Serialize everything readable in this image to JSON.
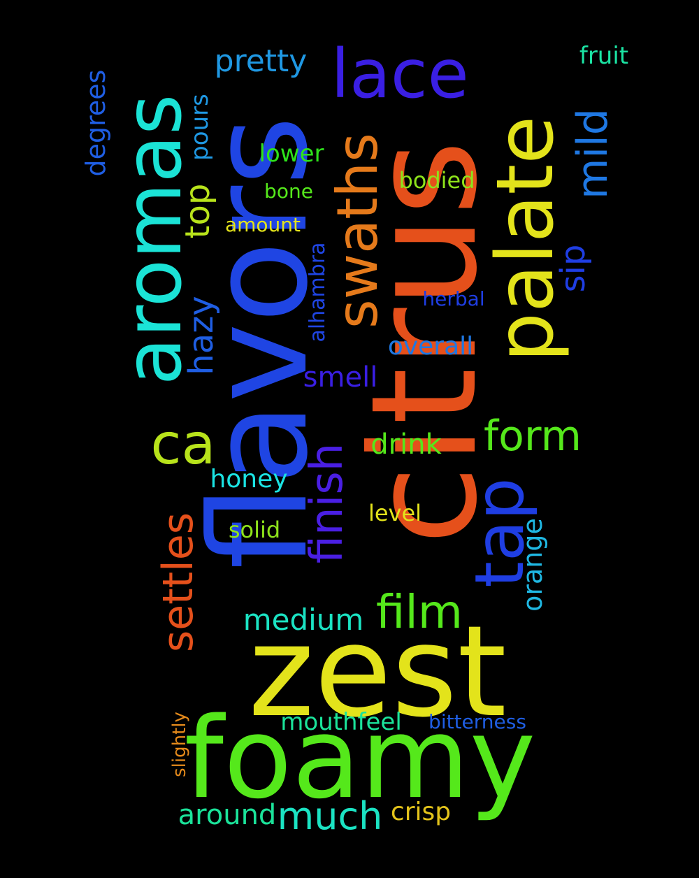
{
  "words": [
    {
      "text": "citrus",
      "color": "#e5501b"
    },
    {
      "text": "flavors",
      "color": "#1f45e3"
    },
    {
      "text": "zest",
      "color": "#e3e31b"
    },
    {
      "text": "foamy",
      "color": "#55e81b"
    },
    {
      "text": "aromas",
      "color": "#1be3d6"
    },
    {
      "text": "palate",
      "color": "#e3e31b"
    },
    {
      "text": "lace",
      "color": "#3a1fe3"
    },
    {
      "text": "swaths",
      "color": "#e57a1b"
    },
    {
      "text": "tap",
      "color": "#1f3ee3"
    },
    {
      "text": "ca",
      "color": "#b8e31b"
    },
    {
      "text": "finish",
      "color": "#4a1fe3"
    },
    {
      "text": "film",
      "color": "#55e81b"
    },
    {
      "text": "settles",
      "color": "#e5501b"
    },
    {
      "text": "form",
      "color": "#55e81b"
    },
    {
      "text": "mild",
      "color": "#1f78e3"
    },
    {
      "text": "much",
      "color": "#1be3c3"
    },
    {
      "text": "hazy",
      "color": "#1f5ee3"
    },
    {
      "text": "top",
      "color": "#b8e31b"
    },
    {
      "text": "pretty",
      "color": "#1f98e3"
    },
    {
      "text": "medium",
      "color": "#1be3c3"
    },
    {
      "text": "smell",
      "color": "#3a1fe3"
    },
    {
      "text": "drink",
      "color": "#55e81b"
    },
    {
      "text": "around",
      "color": "#1be39a"
    },
    {
      "text": "orange",
      "color": "#1fb8e3"
    },
    {
      "text": "overall",
      "color": "#1f78e3"
    },
    {
      "text": "sip",
      "color": "#1f3ee3"
    },
    {
      "text": "degrees",
      "color": "#1f5ee3"
    },
    {
      "text": "crisp",
      "color": "#e3c31b"
    },
    {
      "text": "honey",
      "color": "#1be3e3"
    },
    {
      "text": "pours",
      "color": "#1f98e3"
    },
    {
      "text": "lower",
      "color": "#2ee31b"
    },
    {
      "text": "mouthfeel",
      "color": "#1be39a"
    },
    {
      "text": "fruit",
      "color": "#1be3a3"
    },
    {
      "text": "bodied",
      "color": "#8ee31b"
    },
    {
      "text": "alhambra",
      "color": "#1f45e3"
    },
    {
      "text": "level",
      "color": "#e3e31b"
    },
    {
      "text": "solid",
      "color": "#8ee31b"
    },
    {
      "text": "bitterness",
      "color": "#1f5ee3"
    },
    {
      "text": "herbal",
      "color": "#1f3ee3"
    },
    {
      "text": "bone",
      "color": "#55e81b"
    },
    {
      "text": "amount",
      "color": "#e3e31b"
    },
    {
      "text": "slightly",
      "color": "#e58a1b"
    }
  ]
}
